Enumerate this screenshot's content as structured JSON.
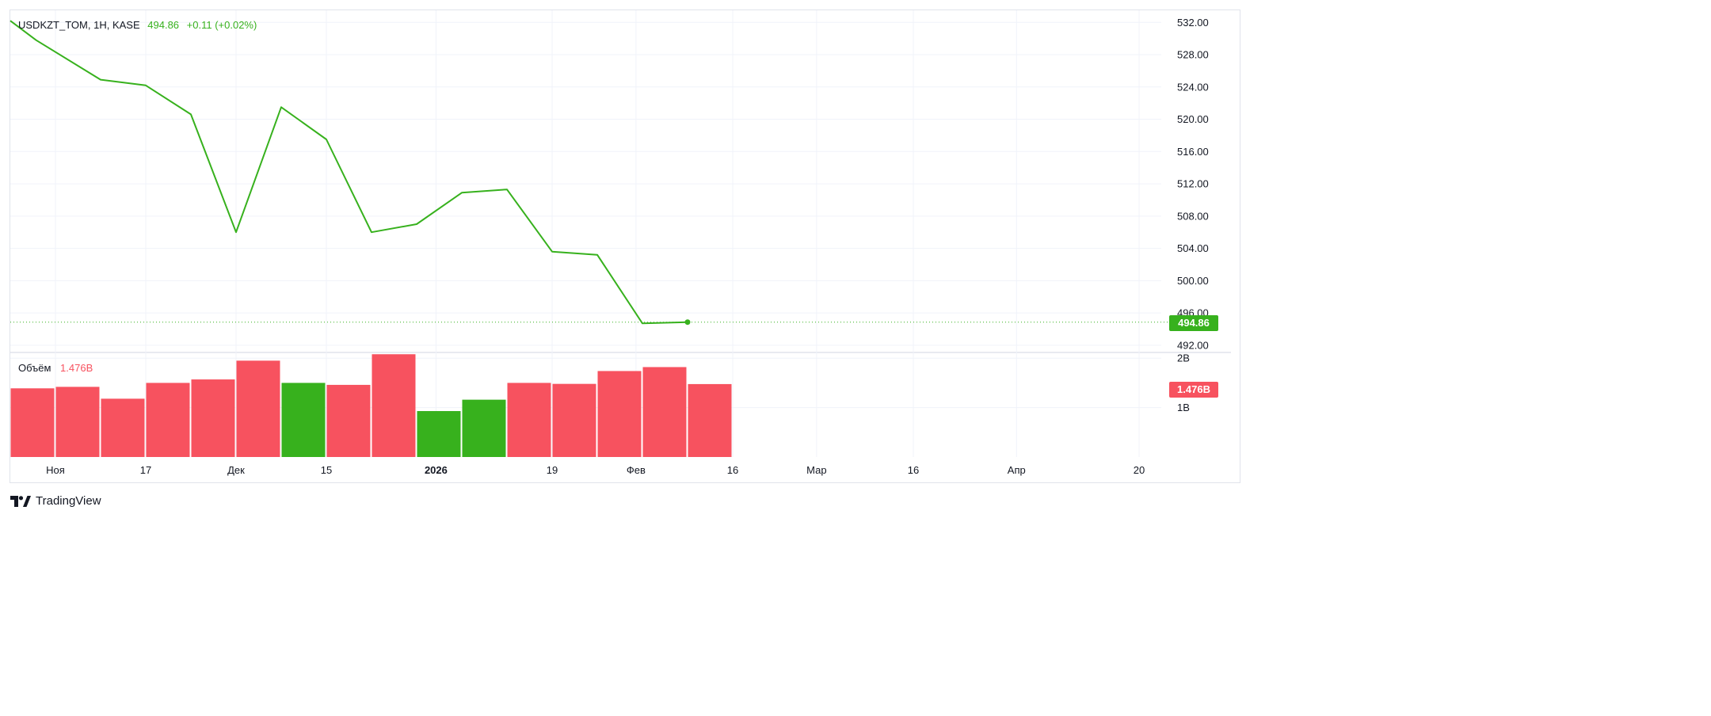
{
  "header": {
    "symbol": "USDKZT_TOM, 1H, KASE",
    "last": "494.86",
    "change": "+0.11 (+0.02%)"
  },
  "volume_legend": {
    "label": "Объём",
    "value": "1.476B"
  },
  "price_tag": "494.86",
  "volume_tag": "1.476B",
  "brand": "TradingView",
  "colors": {
    "up": "#37b11d",
    "down": "#f7525f",
    "grid": "#f0f3fa"
  },
  "chart_data": [
    {
      "type": "line",
      "x": [
        "2025-10-27",
        "2025-10-31",
        "2025-11-10",
        "2025-11-17",
        "2025-11-24",
        "2025-12-01",
        "2025-12-08",
        "2025-12-15",
        "2025-12-22",
        "2025-12-29",
        "2026-01-05",
        "2026-01-12",
        "2026-01-19",
        "2026-01-26",
        "2026-02-02",
        "2026-02-09"
      ],
      "values": [
        532.2,
        529.8,
        524.9,
        524.2,
        520.6,
        506.0,
        521.5,
        517.5,
        506.0,
        507.0,
        510.9,
        511.3,
        503.6,
        503.2,
        494.7,
        494.86
      ],
      "y_ticks": [
        "532.00",
        "528.00",
        "524.00",
        "520.00",
        "516.00",
        "512.00",
        "508.00",
        "504.00",
        "500.00",
        "496.00",
        "492.00"
      ],
      "ylim": [
        491.2,
        533.5
      ],
      "last_value": 494.86
    },
    {
      "type": "bar",
      "title": "Объём",
      "x": [
        "2025-10-27",
        "2025-11-03",
        "2025-11-10",
        "2025-11-17",
        "2025-11-24",
        "2025-12-01",
        "2025-12-08",
        "2025-12-15",
        "2025-12-22",
        "2025-12-29",
        "2026-01-05",
        "2026-01-12",
        "2026-01-19",
        "2026-01-26",
        "2026-02-02",
        "2026-02-09"
      ],
      "values": [
        1.39,
        1.42,
        1.18,
        1.5,
        1.57,
        1.95,
        1.5,
        1.46,
        2.08,
        0.93,
        1.16,
        1.5,
        1.48,
        1.74,
        1.82,
        1.476
      ],
      "direction": [
        "down",
        "down",
        "down",
        "down",
        "down",
        "down",
        "up",
        "down",
        "down",
        "up",
        "up",
        "down",
        "down",
        "down",
        "down",
        "down"
      ],
      "y_ticks": [
        "2B",
        "1B"
      ],
      "ylim": [
        0,
        2.1
      ]
    }
  ],
  "x_axis": {
    "labels": [
      {
        "text": "Ноя",
        "bold": false
      },
      {
        "text": "17",
        "bold": false
      },
      {
        "text": "Дек",
        "bold": false
      },
      {
        "text": "15",
        "bold": false
      },
      {
        "text": "2026",
        "bold": true
      },
      {
        "text": "19",
        "bold": false
      },
      {
        "text": "Фев",
        "bold": false
      },
      {
        "text": "16",
        "bold": false
      },
      {
        "text": "Мар",
        "bold": false
      },
      {
        "text": "16",
        "bold": false
      },
      {
        "text": "Апр",
        "bold": false
      },
      {
        "text": "20",
        "bold": false
      }
    ]
  }
}
